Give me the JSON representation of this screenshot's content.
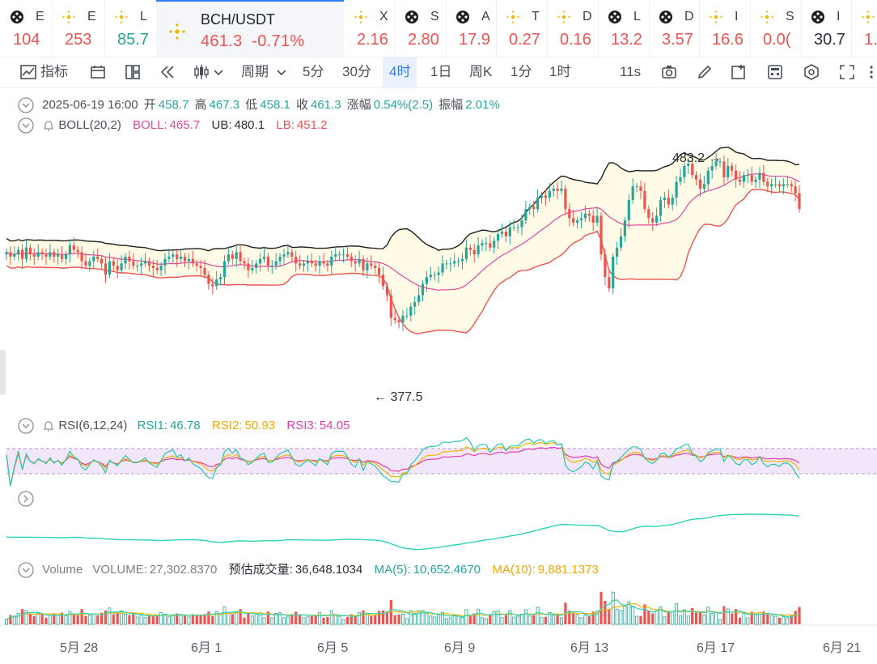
{
  "ticker_tabs": [
    {
      "symbol": "E",
      "value": "104",
      "trend": "down",
      "icon": "black-coin-icon"
    },
    {
      "symbol": "E",
      "value": "253",
      "trend": "down",
      "icon": "bnb-icon"
    },
    {
      "symbol": "L",
      "value": "85.7",
      "trend": "up",
      "icon": "bnb-icon"
    },
    {
      "symbol": "X",
      "value": "2.16",
      "trend": "down",
      "icon": "bnb-icon"
    },
    {
      "symbol": "S",
      "value": "2.80",
      "trend": "down",
      "icon": "black-coin-icon"
    },
    {
      "symbol": "A",
      "value": "17.9",
      "trend": "down",
      "icon": "black-coin-icon"
    },
    {
      "symbol": "T",
      "value": "0.27",
      "trend": "down",
      "icon": "bnb-icon"
    },
    {
      "symbol": "D",
      "value": "0.16",
      "trend": "down",
      "icon": "bnb-icon"
    },
    {
      "symbol": "L",
      "value": "13.2",
      "trend": "down",
      "icon": "black-coin-icon"
    },
    {
      "symbol": "D",
      "value": "3.57",
      "trend": "down",
      "icon": "black-coin-icon"
    },
    {
      "symbol": "I",
      "value": "16.6",
      "trend": "down",
      "icon": "bnb-icon"
    },
    {
      "symbol": "S",
      "value": "0.0(",
      "trend": "down",
      "icon": "bnb-icon"
    },
    {
      "symbol": "I",
      "value": "30.7",
      "trend": "neutral",
      "icon": "black-coin-icon"
    },
    {
      "symbol": "",
      "value": "1.",
      "trend": "down",
      "icon": "bnb-icon"
    }
  ],
  "active_tab": {
    "symbol": "BCH/USDT",
    "price": "461.3",
    "change": "-0.71%"
  },
  "toolbar": {
    "indicator": "指标",
    "period": "周期",
    "intervals": [
      "5分",
      "30分",
      "4时",
      "1日",
      "周K",
      "1分",
      "1时"
    ],
    "active_interval": "4时",
    "refresh": "11s"
  },
  "ohlc": {
    "date": "2025-06-19 16:00",
    "open_label": "开",
    "open": "458.7",
    "high_label": "高",
    "high": "467.3",
    "low_label": "低",
    "low": "458.1",
    "close_label": "收",
    "close": "461.3",
    "change_label": "涨幅",
    "change": "0.54%(2.5)",
    "amp_label": "振幅",
    "amp": "2.01%"
  },
  "boll": {
    "name": "BOLL(20,2)",
    "mid_label": "BOLL:",
    "mid": "465.7",
    "ub_label": "UB:",
    "ub": "480.1",
    "lb_label": "LB:",
    "lb": "451.2"
  },
  "rsi": {
    "name": "RSI(6,12,24)",
    "rsi1_label": "RSI1:",
    "rsi1": "46.78",
    "rsi2_label": "RSI2:",
    "rsi2": "50.93",
    "rsi3_label": "RSI3:",
    "rsi3": "54.05"
  },
  "volume": {
    "name": "Volume",
    "vol_label": "VOLUME:",
    "vol": "27,302.8370",
    "est_label": "预估成交量:",
    "est": "36,648.1034",
    "ma5_label": "MA(5):",
    "ma5": "10,652.4670",
    "ma10_label": "MA(10):",
    "ma10": "9,881.1373"
  },
  "annotations": {
    "max": "483.2",
    "min": "377.5"
  },
  "x_axis": [
    "5月 28",
    "6月 1",
    "6月 5",
    "6月 9",
    "6月 13",
    "6月 17",
    "6月 21"
  ],
  "colors": {
    "up": "#26a69a",
    "down": "#ef5350",
    "accent": "#2f7cf6",
    "boll_mid": "#e0499b",
    "boll_upper": "#1f1f1f",
    "boll_lower": "#ef5350",
    "boll_fill": "#fffbe6",
    "rsi1": "#26c6b0",
    "rsi2": "#f0b400",
    "rsi3": "#e040b0",
    "ma5": "#2dd4b4",
    "ma10": "#f0b400"
  },
  "chart_data": {
    "type": "candlestick",
    "interval": "4h",
    "ylim": [
      377.5,
      483.2
    ],
    "close_series": [
      442,
      440,
      441,
      443,
      439,
      444,
      441,
      440,
      442,
      441,
      440,
      442,
      440,
      441,
      439,
      441,
      445,
      443,
      442,
      438,
      436,
      438,
      440,
      439,
      437,
      432,
      438,
      436,
      434,
      437,
      440,
      438,
      436,
      436,
      437,
      438,
      436,
      435,
      434,
      436,
      439,
      440,
      441,
      439,
      440,
      438,
      439,
      437,
      436,
      435,
      432,
      428,
      427,
      430,
      431,
      438,
      441,
      439,
      442,
      438,
      437,
      434,
      435,
      437,
      439,
      440,
      436,
      436,
      438,
      440,
      441,
      442,
      440,
      437,
      436,
      437,
      438,
      437,
      436,
      438,
      437,
      436,
      440,
      441,
      441,
      441,
      440,
      438,
      437,
      439,
      434,
      437,
      436,
      435,
      432,
      427,
      423,
      413,
      412,
      411,
      414,
      414,
      418,
      420,
      423,
      428,
      431,
      432,
      432,
      433,
      437,
      437,
      437,
      438,
      438,
      439,
      444,
      443,
      441,
      445,
      446,
      446,
      444,
      447,
      450,
      451,
      449,
      453,
      453,
      453,
      456,
      461,
      462,
      461,
      466,
      467,
      466,
      469,
      470,
      469,
      470,
      461,
      457,
      455,
      456,
      457,
      459,
      458,
      455,
      458,
      441,
      431,
      426,
      440,
      444,
      449,
      456,
      465,
      471,
      471,
      469,
      461,
      457,
      455,
      458,
      465,
      466,
      463,
      466,
      473,
      475,
      480,
      481,
      476,
      474,
      470,
      472,
      478,
      480,
      482,
      482,
      475,
      480,
      478,
      474,
      473,
      476,
      476,
      473,
      474,
      477,
      473,
      471,
      472,
      472,
      471,
      472,
      472,
      471,
      468,
      461
    ]
  }
}
